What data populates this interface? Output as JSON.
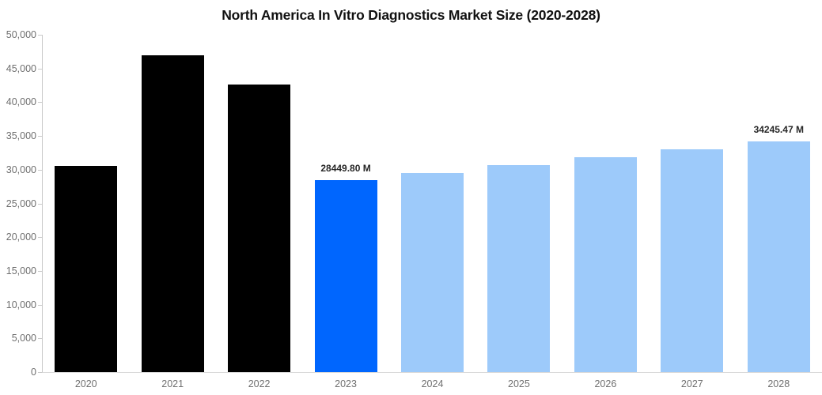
{
  "title": "North America In Vitro Diagnostics Market Size (2020-2028)",
  "colors": {
    "historical_bar": "#000000",
    "highlight_bar": "#0066fe",
    "forecast_bar": "#9dcafa",
    "axis_line": "#c9c9c9",
    "tick_label": "#6f6f6f",
    "data_label": "#262626",
    "title": "#111111",
    "background": "#ffffff"
  },
  "chart_data": {
    "type": "bar",
    "title": "North America In Vitro Diagnostics Market Size (2020-2028)",
    "unit": "M",
    "categories": [
      "2020",
      "2021",
      "2022",
      "2023",
      "2024",
      "2025",
      "2026",
      "2027",
      "2028"
    ],
    "values": [
      30600,
      46900,
      42600,
      28449.8,
      29525,
      30640,
      31798,
      32999,
      34245.47
    ],
    "bar_colors": [
      "#000000",
      "#000000",
      "#000000",
      "#0066fe",
      "#9dcafa",
      "#9dcafa",
      "#9dcafa",
      "#9dcafa",
      "#9dcafa"
    ],
    "data_labels": [
      null,
      null,
      null,
      "28449.80 M",
      null,
      null,
      null,
      null,
      "34245.47 M"
    ],
    "xlabel": "",
    "ylabel": "",
    "ylim": [
      0,
      50000
    ],
    "yticks": [
      0,
      5000,
      10000,
      15000,
      20000,
      25000,
      30000,
      35000,
      40000,
      45000,
      50000
    ],
    "ytick_labels": [
      "0",
      "5,000",
      "10,000",
      "15,000",
      "20,000",
      "25,000",
      "30,000",
      "35,000",
      "40,000",
      "45,000",
      "50,000"
    ],
    "grid": false,
    "legend": null
  }
}
